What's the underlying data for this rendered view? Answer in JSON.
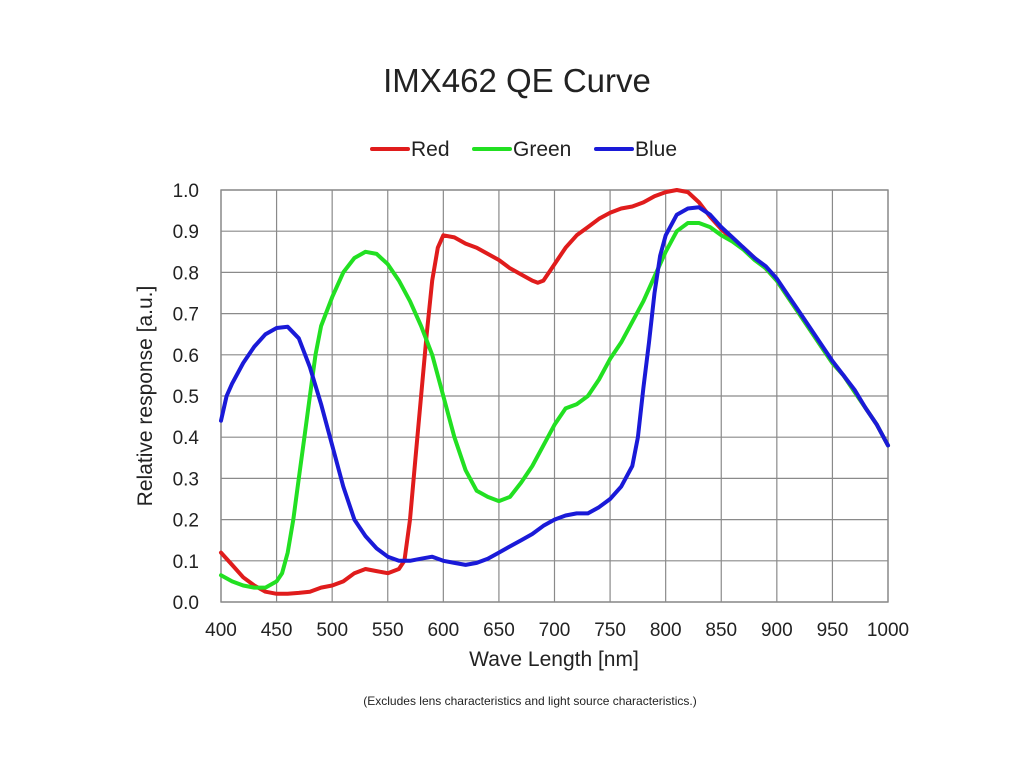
{
  "chart_data": {
    "type": "line",
    "title": "IMX462  QE Curve",
    "xlabel": "Wave Length [nm]",
    "ylabel": "Relative response [a.u.]",
    "footnote": "(Excludes lens characteristics and light source characteristics.)",
    "xlim": [
      400,
      1000
    ],
    "ylim": [
      0,
      1.0
    ],
    "x_ticks": [
      400,
      450,
      500,
      550,
      600,
      650,
      700,
      750,
      800,
      850,
      900,
      950,
      1000
    ],
    "x_tick_labels": [
      "400",
      "450",
      "500",
      "550",
      "600",
      "650",
      "700",
      "750",
      "800",
      "850",
      "900",
      "950",
      "1000"
    ],
    "y_ticks": [
      0,
      0.1,
      0.2,
      0.3,
      0.4,
      0.5,
      0.6,
      0.7,
      0.8,
      0.9,
      1.0
    ],
    "y_tick_labels": [
      "0.0",
      "0.1",
      "0.2",
      "0.3",
      "0.4",
      "0.5",
      "0.6",
      "0.7",
      "0.8",
      "0.9",
      "1.0"
    ],
    "grid": true,
    "legend_position": "top-center",
    "series": [
      {
        "name": "Red",
        "color": "#e01c1c",
        "points": [
          [
            400,
            0.12
          ],
          [
            410,
            0.09
          ],
          [
            420,
            0.06
          ],
          [
            430,
            0.04
          ],
          [
            440,
            0.025
          ],
          [
            450,
            0.02
          ],
          [
            460,
            0.02
          ],
          [
            470,
            0.022
          ],
          [
            480,
            0.025
          ],
          [
            490,
            0.035
          ],
          [
            500,
            0.04
          ],
          [
            510,
            0.05
          ],
          [
            520,
            0.07
          ],
          [
            530,
            0.08
          ],
          [
            540,
            0.075
          ],
          [
            550,
            0.07
          ],
          [
            560,
            0.08
          ],
          [
            565,
            0.1
          ],
          [
            570,
            0.2
          ],
          [
            575,
            0.35
          ],
          [
            580,
            0.5
          ],
          [
            585,
            0.65
          ],
          [
            590,
            0.78
          ],
          [
            595,
            0.86
          ],
          [
            600,
            0.89
          ],
          [
            610,
            0.885
          ],
          [
            620,
            0.87
          ],
          [
            630,
            0.86
          ],
          [
            640,
            0.845
          ],
          [
            650,
            0.83
          ],
          [
            660,
            0.81
          ],
          [
            670,
            0.795
          ],
          [
            680,
            0.78
          ],
          [
            685,
            0.775
          ],
          [
            690,
            0.78
          ],
          [
            700,
            0.82
          ],
          [
            710,
            0.86
          ],
          [
            720,
            0.89
          ],
          [
            730,
            0.91
          ],
          [
            740,
            0.93
          ],
          [
            750,
            0.945
          ],
          [
            760,
            0.955
          ],
          [
            770,
            0.96
          ],
          [
            780,
            0.97
          ],
          [
            790,
            0.985
          ],
          [
            800,
            0.995
          ],
          [
            810,
            1.0
          ],
          [
            820,
            0.995
          ],
          [
            830,
            0.97
          ],
          [
            840,
            0.935
          ],
          [
            850,
            0.905
          ],
          [
            860,
            0.88
          ],
          [
            870,
            0.86
          ],
          [
            880,
            0.835
          ],
          [
            890,
            0.81
          ],
          [
            900,
            0.78
          ],
          [
            910,
            0.74
          ],
          [
            920,
            0.7
          ],
          [
            930,
            0.66
          ],
          [
            940,
            0.62
          ],
          [
            950,
            0.58
          ],
          [
            960,
            0.55
          ],
          [
            970,
            0.51
          ],
          [
            980,
            0.47
          ],
          [
            990,
            0.43
          ],
          [
            1000,
            0.38
          ]
        ]
      },
      {
        "name": "Green",
        "color": "#22e022",
        "points": [
          [
            400,
            0.065
          ],
          [
            410,
            0.05
          ],
          [
            420,
            0.04
          ],
          [
            430,
            0.035
          ],
          [
            440,
            0.035
          ],
          [
            450,
            0.05
          ],
          [
            455,
            0.07
          ],
          [
            460,
            0.12
          ],
          [
            465,
            0.2
          ],
          [
            470,
            0.3
          ],
          [
            475,
            0.4
          ],
          [
            480,
            0.5
          ],
          [
            485,
            0.6
          ],
          [
            490,
            0.67
          ],
          [
            500,
            0.74
          ],
          [
            510,
            0.8
          ],
          [
            520,
            0.835
          ],
          [
            530,
            0.85
          ],
          [
            540,
            0.845
          ],
          [
            550,
            0.82
          ],
          [
            560,
            0.78
          ],
          [
            570,
            0.73
          ],
          [
            580,
            0.67
          ],
          [
            590,
            0.6
          ],
          [
            600,
            0.5
          ],
          [
            610,
            0.4
          ],
          [
            620,
            0.32
          ],
          [
            630,
            0.27
          ],
          [
            640,
            0.255
          ],
          [
            650,
            0.245
          ],
          [
            660,
            0.255
          ],
          [
            670,
            0.29
          ],
          [
            680,
            0.33
          ],
          [
            690,
            0.38
          ],
          [
            700,
            0.43
          ],
          [
            710,
            0.47
          ],
          [
            720,
            0.48
          ],
          [
            730,
            0.5
          ],
          [
            740,
            0.54
          ],
          [
            750,
            0.59
          ],
          [
            760,
            0.63
          ],
          [
            770,
            0.68
          ],
          [
            780,
            0.73
          ],
          [
            790,
            0.79
          ],
          [
            800,
            0.85
          ],
          [
            810,
            0.9
          ],
          [
            820,
            0.92
          ],
          [
            830,
            0.92
          ],
          [
            840,
            0.91
          ],
          [
            850,
            0.89
          ],
          [
            860,
            0.875
          ],
          [
            870,
            0.855
          ],
          [
            880,
            0.83
          ],
          [
            890,
            0.81
          ],
          [
            900,
            0.78
          ],
          [
            910,
            0.74
          ],
          [
            920,
            0.7
          ],
          [
            930,
            0.66
          ],
          [
            940,
            0.62
          ],
          [
            950,
            0.58
          ],
          [
            960,
            0.55
          ],
          [
            970,
            0.51
          ],
          [
            980,
            0.47
          ],
          [
            990,
            0.43
          ],
          [
            1000,
            0.38
          ]
        ]
      },
      {
        "name": "Blue",
        "color": "#1a1ad8",
        "points": [
          [
            400,
            0.44
          ],
          [
            405,
            0.5
          ],
          [
            410,
            0.53
          ],
          [
            420,
            0.58
          ],
          [
            430,
            0.62
          ],
          [
            440,
            0.65
          ],
          [
            450,
            0.665
          ],
          [
            460,
            0.668
          ],
          [
            470,
            0.64
          ],
          [
            480,
            0.57
          ],
          [
            490,
            0.48
          ],
          [
            500,
            0.38
          ],
          [
            510,
            0.28
          ],
          [
            520,
            0.2
          ],
          [
            530,
            0.16
          ],
          [
            540,
            0.13
          ],
          [
            550,
            0.11
          ],
          [
            560,
            0.1
          ],
          [
            570,
            0.1
          ],
          [
            580,
            0.105
          ],
          [
            590,
            0.11
          ],
          [
            600,
            0.1
          ],
          [
            610,
            0.095
          ],
          [
            620,
            0.09
          ],
          [
            630,
            0.095
          ],
          [
            640,
            0.105
          ],
          [
            650,
            0.12
          ],
          [
            660,
            0.135
          ],
          [
            670,
            0.15
          ],
          [
            680,
            0.165
          ],
          [
            690,
            0.185
          ],
          [
            700,
            0.2
          ],
          [
            710,
            0.21
          ],
          [
            720,
            0.215
          ],
          [
            730,
            0.215
          ],
          [
            740,
            0.23
          ],
          [
            750,
            0.25
          ],
          [
            760,
            0.28
          ],
          [
            770,
            0.33
          ],
          [
            775,
            0.4
          ],
          [
            780,
            0.52
          ],
          [
            785,
            0.63
          ],
          [
            790,
            0.75
          ],
          [
            795,
            0.84
          ],
          [
            800,
            0.89
          ],
          [
            810,
            0.94
          ],
          [
            820,
            0.955
          ],
          [
            830,
            0.958
          ],
          [
            840,
            0.94
          ],
          [
            850,
            0.91
          ],
          [
            860,
            0.885
          ],
          [
            870,
            0.86
          ],
          [
            880,
            0.835
          ],
          [
            890,
            0.815
          ],
          [
            900,
            0.785
          ],
          [
            910,
            0.745
          ],
          [
            920,
            0.705
          ],
          [
            930,
            0.665
          ],
          [
            940,
            0.625
          ],
          [
            950,
            0.585
          ],
          [
            960,
            0.55
          ],
          [
            970,
            0.515
          ],
          [
            980,
            0.47
          ],
          [
            990,
            0.43
          ],
          [
            1000,
            0.38
          ]
        ]
      }
    ]
  }
}
